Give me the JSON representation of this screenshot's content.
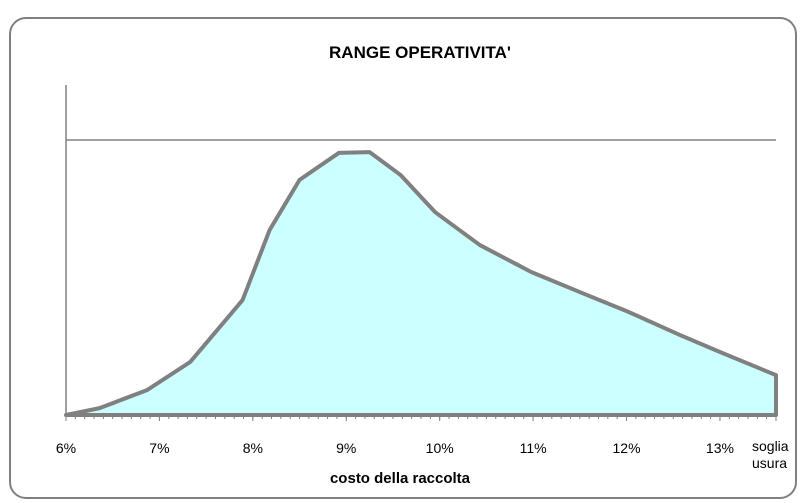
{
  "chart_data": {
    "type": "area",
    "title": "RANGE OPERATIVITA'",
    "x_label": "costo della raccolta",
    "x": [
      6.0,
      6.36,
      6.87,
      7.33,
      7.89,
      8.18,
      8.5,
      8.92,
      9.25,
      9.58,
      9.95,
      10.43,
      10.98,
      11.5,
      12.02,
      12.57,
      13.0,
      13.6
    ],
    "series": [
      {
        "color": "#ccffff",
        "line_color": "#808080",
        "values": [
          0,
          2.5,
          9.1,
          19.3,
          41.8,
          67.3,
          85.5,
          95.3,
          95.6,
          87.3,
          73.8,
          61.8,
          52,
          44.7,
          37.5,
          29.1,
          22.9,
          14.5
        ]
      }
    ],
    "xlim": [
      6,
      13.6
    ],
    "xticks": [
      {
        "value": 6,
        "label": "6%"
      },
      {
        "value": 7,
        "label": "7%"
      },
      {
        "value": 8,
        "label": "8%"
      },
      {
        "value": 9,
        "label": "9%"
      },
      {
        "value": 10,
        "label": "10%"
      },
      {
        "value": 11,
        "label": "11%"
      },
      {
        "value": 12,
        "label": "12%"
      },
      {
        "value": 13,
        "label": "13%"
      },
      {
        "value": 13.6,
        "label": "soglia usura"
      }
    ],
    "ylim": [
      0,
      120
    ],
    "max_line": 100
  }
}
